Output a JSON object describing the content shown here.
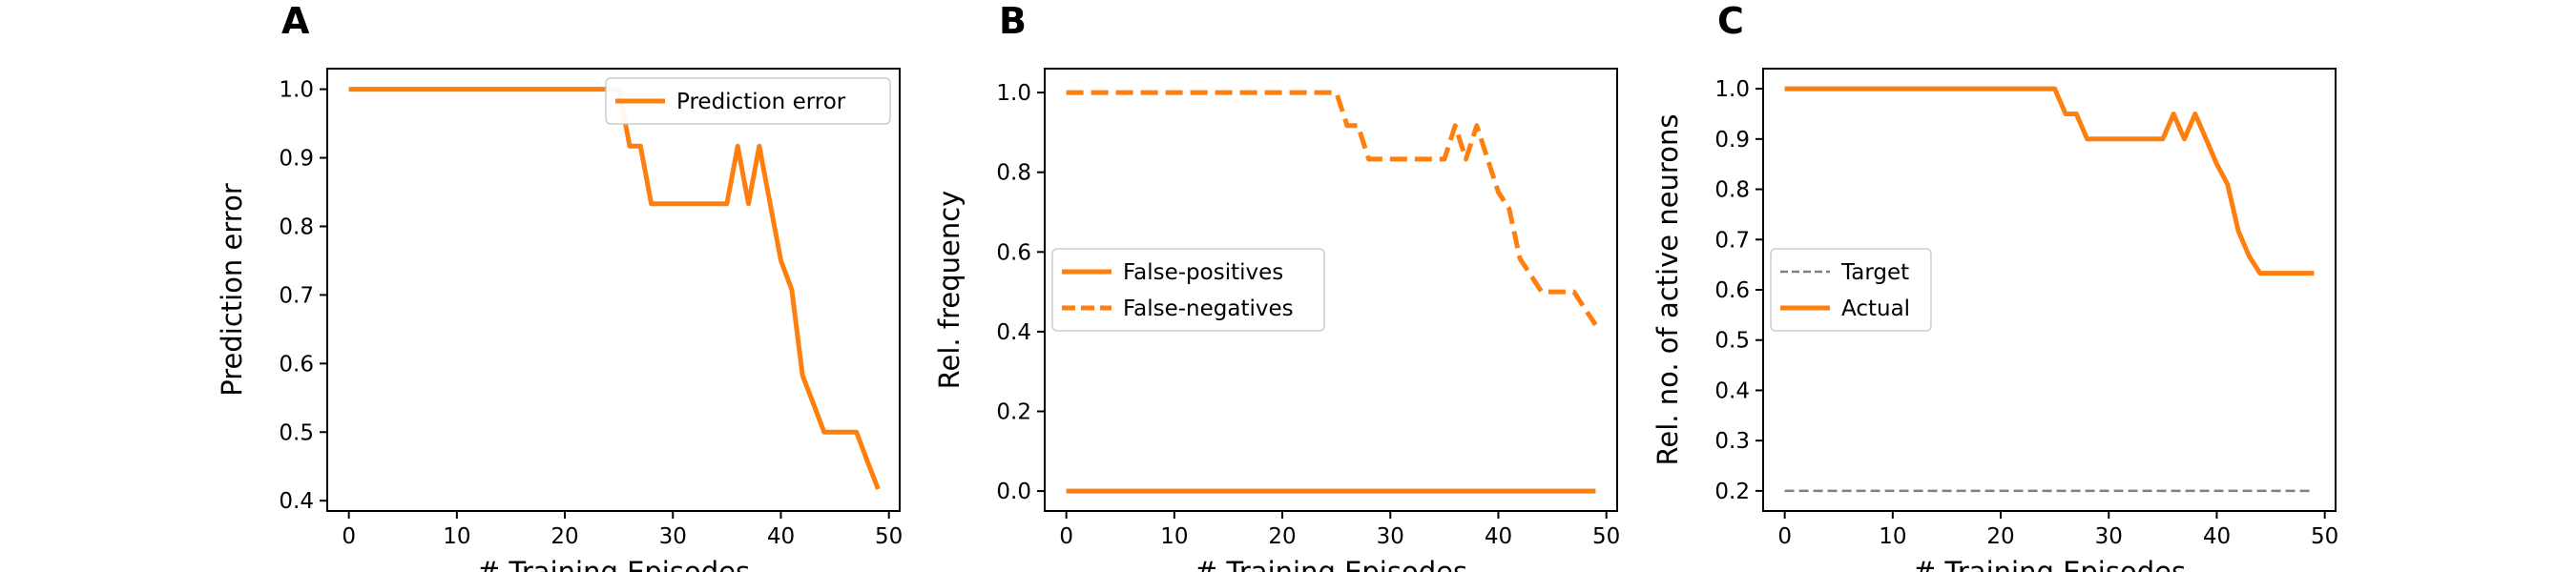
{
  "colors": {
    "series": "#ff7f0e",
    "target": "#808080",
    "axes": "#000000"
  },
  "chart_data": [
    {
      "type": "line",
      "panel_label": "A",
      "xlabel": "# Training Episodes",
      "ylabel": "Prediction error",
      "xlim": [
        -2,
        51
      ],
      "ylim": [
        0.385,
        1.03
      ],
      "xticks": [
        0,
        10,
        20,
        30,
        40,
        50
      ],
      "yticks": [
        0.4,
        0.5,
        0.6,
        0.7,
        0.8,
        0.9,
        1.0
      ],
      "ytick_labels": [
        "0.4",
        "0.5",
        "0.6",
        "0.7",
        "0.8",
        "0.9",
        "1.0"
      ],
      "legend_position": "upper right",
      "series": [
        {
          "name": "Prediction error",
          "style": "solid",
          "color": "#ff7f0e",
          "x": [
            0,
            1,
            2,
            3,
            4,
            5,
            6,
            7,
            8,
            9,
            10,
            11,
            12,
            13,
            14,
            15,
            16,
            17,
            18,
            19,
            20,
            21,
            22,
            23,
            24,
            25,
            26,
            27,
            28,
            29,
            30,
            31,
            32,
            33,
            34,
            35,
            36,
            37,
            38,
            39,
            40,
            41,
            42,
            43,
            44,
            45,
            46,
            47,
            48,
            49
          ],
          "y": [
            1,
            1,
            1,
            1,
            1,
            1,
            1,
            1,
            1,
            1,
            1,
            1,
            1,
            1,
            1,
            1,
            1,
            1,
            1,
            1,
            1,
            1,
            1,
            1,
            1,
            1,
            0.917,
            0.917,
            0.833,
            0.833,
            0.833,
            0.833,
            0.833,
            0.833,
            0.833,
            0.833,
            0.917,
            0.833,
            0.917,
            0.833,
            0.75,
            0.708,
            0.583,
            0.542,
            0.5,
            0.5,
            0.5,
            0.5,
            0.458,
            0.417
          ]
        }
      ]
    },
    {
      "type": "line",
      "panel_label": "B",
      "xlabel": "# Training Episodes",
      "ylabel": "Rel. frequency",
      "xlim": [
        -2,
        51
      ],
      "ylim": [
        -0.05,
        1.06
      ],
      "xticks": [
        0,
        10,
        20,
        30,
        40,
        50
      ],
      "yticks": [
        0.0,
        0.2,
        0.4,
        0.6,
        0.8,
        1.0
      ],
      "ytick_labels": [
        "0.0",
        "0.2",
        "0.4",
        "0.6",
        "0.8",
        "1.0"
      ],
      "legend_position": "center left",
      "series": [
        {
          "name": "False-positives",
          "style": "solid",
          "color": "#ff7f0e",
          "x": [
            0,
            49
          ],
          "y": [
            0,
            0
          ]
        },
        {
          "name": "False-negatives",
          "style": "dashed",
          "color": "#ff7f0e",
          "x": [
            0,
            1,
            2,
            3,
            4,
            5,
            6,
            7,
            8,
            9,
            10,
            11,
            12,
            13,
            14,
            15,
            16,
            17,
            18,
            19,
            20,
            21,
            22,
            23,
            24,
            25,
            26,
            27,
            28,
            29,
            30,
            31,
            32,
            33,
            34,
            35,
            36,
            37,
            38,
            39,
            40,
            41,
            42,
            43,
            44,
            45,
            46,
            47,
            48,
            49
          ],
          "y": [
            1,
            1,
            1,
            1,
            1,
            1,
            1,
            1,
            1,
            1,
            1,
            1,
            1,
            1,
            1,
            1,
            1,
            1,
            1,
            1,
            1,
            1,
            1,
            1,
            1,
            1,
            0.917,
            0.917,
            0.833,
            0.833,
            0.833,
            0.833,
            0.833,
            0.833,
            0.833,
            0.833,
            0.917,
            0.833,
            0.917,
            0.833,
            0.75,
            0.708,
            0.583,
            0.542,
            0.5,
            0.5,
            0.5,
            0.5,
            0.458,
            0.417
          ]
        }
      ]
    },
    {
      "type": "line",
      "panel_label": "C",
      "xlabel": "# Training Episodes",
      "ylabel": "Rel. no. of active neurons",
      "xlim": [
        -2,
        51
      ],
      "ylim": [
        0.16,
        1.04
      ],
      "xticks": [
        0,
        10,
        20,
        30,
        40,
        50
      ],
      "yticks": [
        0.2,
        0.3,
        0.4,
        0.5,
        0.6,
        0.7,
        0.8,
        0.9,
        1.0
      ],
      "ytick_labels": [
        "0.2",
        "0.3",
        "0.4",
        "0.5",
        "0.6",
        "0.7",
        "0.8",
        "0.9",
        "1.0"
      ],
      "legend_position": "center left",
      "series": [
        {
          "name": "Target",
          "style": "dashed-thin",
          "color": "#808080",
          "x": [
            0,
            49
          ],
          "y": [
            0.2,
            0.2
          ]
        },
        {
          "name": "Actual",
          "style": "solid",
          "color": "#ff7f0e",
          "x": [
            0,
            1,
            2,
            3,
            4,
            5,
            6,
            7,
            8,
            9,
            10,
            11,
            12,
            13,
            14,
            15,
            16,
            17,
            18,
            19,
            20,
            21,
            22,
            23,
            24,
            25,
            26,
            27,
            28,
            29,
            30,
            31,
            32,
            33,
            34,
            35,
            36,
            37,
            38,
            39,
            40,
            41,
            42,
            43,
            44,
            45,
            46,
            47,
            48,
            49
          ],
          "y": [
            1,
            1,
            1,
            1,
            1,
            1,
            1,
            1,
            1,
            1,
            1,
            1,
            1,
            1,
            1,
            1,
            1,
            1,
            1,
            1,
            1,
            1,
            1,
            1,
            1,
            1,
            0.95,
            0.95,
            0.9,
            0.9,
            0.9,
            0.9,
            0.9,
            0.9,
            0.9,
            0.9,
            0.95,
            0.9,
            0.95,
            0.9,
            0.85,
            0.81,
            0.717,
            0.667,
            0.633,
            0.633,
            0.633,
            0.633,
            0.633,
            0.633
          ]
        }
      ]
    }
  ]
}
